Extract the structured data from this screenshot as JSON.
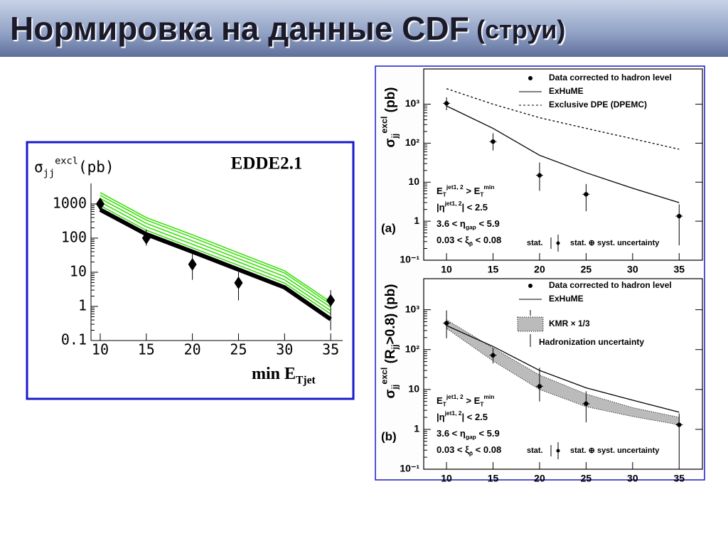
{
  "header": {
    "title": "Нормировка на данные CDF",
    "title_note": "(струи)"
  },
  "chart_data": [
    {
      "type": "line",
      "ylabel": [
        [
          "σ",
          "n"
        ],
        [
          "jj",
          "sub"
        ],
        [
          "excl",
          "sup"
        ],
        [
          "(pb)",
          "n"
        ]
      ],
      "annotation": "EDDE2.1",
      "xlabel": [
        [
          "min E",
          "n"
        ],
        [
          "Tjet",
          "sub"
        ]
      ],
      "x": [
        10,
        15,
        20,
        25,
        30,
        35
      ],
      "series": [
        {
          "color": "#33dd00",
          "values": [
            2150,
            400,
            125,
            37,
            11,
            1.35
          ]
        },
        {
          "color": "#33dd00",
          "values": [
            1800,
            340,
            105,
            31,
            9.5,
            1.15
          ]
        },
        {
          "color": "#33dd00",
          "values": [
            1450,
            270,
            83,
            25,
            7.5,
            0.95
          ]
        },
        {
          "color": "#33dd00",
          "values": [
            1150,
            215,
            66,
            20,
            6,
            0.75
          ]
        },
        {
          "color": "#33dd00",
          "values": [
            900,
            170,
            52,
            16,
            4.8,
            0.6
          ]
        },
        {
          "color": "#000000",
          "style": "thick",
          "values": [
            680,
            130,
            40,
            12,
            3.6,
            0.42
          ]
        }
      ],
      "points": {
        "marker": "diamond",
        "x": [
          10,
          15,
          20,
          25,
          35
        ],
        "values": [
          1000,
          100,
          17,
          4.9,
          1.5
        ],
        "lower": [
          600,
          60,
          6,
          1.5,
          0.2
        ],
        "upper": [
          1500,
          180,
          35,
          10,
          3
        ]
      },
      "log_y": true,
      "xlim": [
        9,
        36.3
      ],
      "ylim": [
        0.1,
        4000
      ],
      "xticks": [
        10,
        15,
        20,
        25,
        30,
        35
      ],
      "yticks": [
        0.1,
        1,
        10,
        100,
        1000
      ]
    },
    {
      "type": "line",
      "panel": "(a)",
      "ylabel": [
        [
          "σ",
          "n"
        ],
        [
          "jj",
          "sub"
        ],
        [
          "excl",
          "sup"
        ],
        [
          " (pb)",
          "n"
        ]
      ],
      "x": [
        10,
        15,
        20,
        25,
        30,
        35
      ],
      "series": [
        {
          "name": "ExHuME",
          "color": "#000000",
          "style": "solid",
          "values": [
            900,
            240,
            49,
            17.5,
            7,
            3
          ]
        },
        {
          "name": "Exclusive DPE (DPEMC)",
          "color": "#000000",
          "style": "dashed",
          "values": [
            2500,
            1000,
            450,
            240,
            130,
            70
          ]
        }
      ],
      "points": {
        "name": "Data corrected to hadron level",
        "marker": "dot",
        "x": [
          10,
          15,
          20,
          25,
          35
        ],
        "values": [
          1050,
          110,
          15,
          4.9,
          1.35
        ],
        "lower": [
          700,
          65,
          6,
          1.8,
          0.24
        ],
        "upper": [
          1500,
          180,
          32,
          9,
          2.7
        ]
      },
      "cuts": [
        [
          [
            "E",
            "n"
          ],
          [
            "T",
            "sub"
          ],
          [
            "jet1, 2",
            "sup"
          ],
          [
            " > E",
            "n"
          ],
          [
            "T",
            "sub"
          ],
          [
            "min",
            "sup"
          ]
        ],
        [
          [
            "|η",
            "n"
          ],
          [
            "jet1, 2",
            "sup"
          ],
          [
            "| < 2.5",
            "n"
          ]
        ],
        [
          [
            "3.6 < η",
            "n"
          ],
          [
            "gap",
            "sub"
          ],
          [
            " < 5.9",
            "n"
          ]
        ],
        [
          [
            "0.03 < ξ",
            "n"
          ],
          [
            "p̄",
            "sub"
          ],
          [
            " < 0.08",
            "n"
          ]
        ]
      ],
      "stat": "stat.",
      "total": "stat. ⊕ syst. uncertainty",
      "log_y": true,
      "xlim": [
        7.55,
        37.5
      ],
      "ylim": [
        0.1,
        8000
      ],
      "xticks": [
        10,
        15,
        20,
        25,
        30,
        35
      ],
      "yticks": [
        {
          "value": 0.1,
          "label": "10⁻¹"
        },
        1,
        10,
        {
          "value": 100,
          "label": "10²"
        },
        {
          "value": 1000,
          "label": "10³"
        }
      ]
    },
    {
      "type": "line",
      "panel": "(b)",
      "ylabel": [
        [
          "σ",
          "n"
        ],
        [
          "jj",
          "sub"
        ],
        [
          "excl",
          "sup"
        ],
        [
          " (R",
          "n"
        ],
        [
          "jj",
          "sub"
        ],
        [
          ">0.8) (pb)",
          "n"
        ]
      ],
      "x": [
        10,
        15,
        20,
        25,
        30,
        35
      ],
      "series": [
        {
          "name": "ExHuME",
          "color": "#000000",
          "style": "solid",
          "values": [
            400,
            120,
            30,
            11,
            5.4,
            2.7
          ]
        }
      ],
      "band": {
        "name": "KMR × 1/3",
        "color": "#bbbbbb",
        "lower": [
          340,
          52,
          10,
          3.7,
          2.1,
          1.3
        ],
        "upper": [
          560,
          110,
          23,
          7.7,
          3.5,
          2.0
        ]
      },
      "band_note": "Hadronization uncertainty",
      "points": {
        "name": "Data corrected to hadron level",
        "marker": "dot",
        "x": [
          10,
          15,
          20,
          25,
          35
        ],
        "values": [
          460,
          72,
          12,
          4.4,
          1.3
        ],
        "lower": [
          193,
          45,
          5,
          1.5,
          0.15
        ],
        "upper": [
          960,
          110,
          35,
          9,
          2.5
        ]
      },
      "cuts": [
        [
          [
            "E",
            "n"
          ],
          [
            "T",
            "sub"
          ],
          [
            "jet1, 2",
            "sup"
          ],
          [
            " > E",
            "n"
          ],
          [
            "T",
            "sub"
          ],
          [
            "min",
            "sup"
          ]
        ],
        [
          [
            "|η",
            "n"
          ],
          [
            "jet1, 2",
            "sup"
          ],
          [
            "| < 2.5",
            "n"
          ]
        ],
        [
          [
            "3.6 < η",
            "n"
          ],
          [
            "gap",
            "sub"
          ],
          [
            " < 5.9",
            "n"
          ]
        ],
        [
          [
            "0.03 < ξ",
            "n"
          ],
          [
            "p̄",
            "sub"
          ],
          [
            " < 0.08",
            "n"
          ]
        ]
      ],
      "stat": "stat.",
      "total": "stat. ⊕ syst. uncertainty",
      "log_y": true,
      "xlim": [
        7.55,
        37.5
      ],
      "ylim": [
        0.1,
        6000
      ],
      "xticks": [
        10,
        15,
        20,
        25,
        30,
        35
      ],
      "yticks": [
        {
          "value": 0.1,
          "label": "10⁻¹"
        },
        1,
        10,
        {
          "value": 100,
          "label": "10²"
        },
        {
          "value": 1000,
          "label": "10³"
        }
      ]
    }
  ]
}
